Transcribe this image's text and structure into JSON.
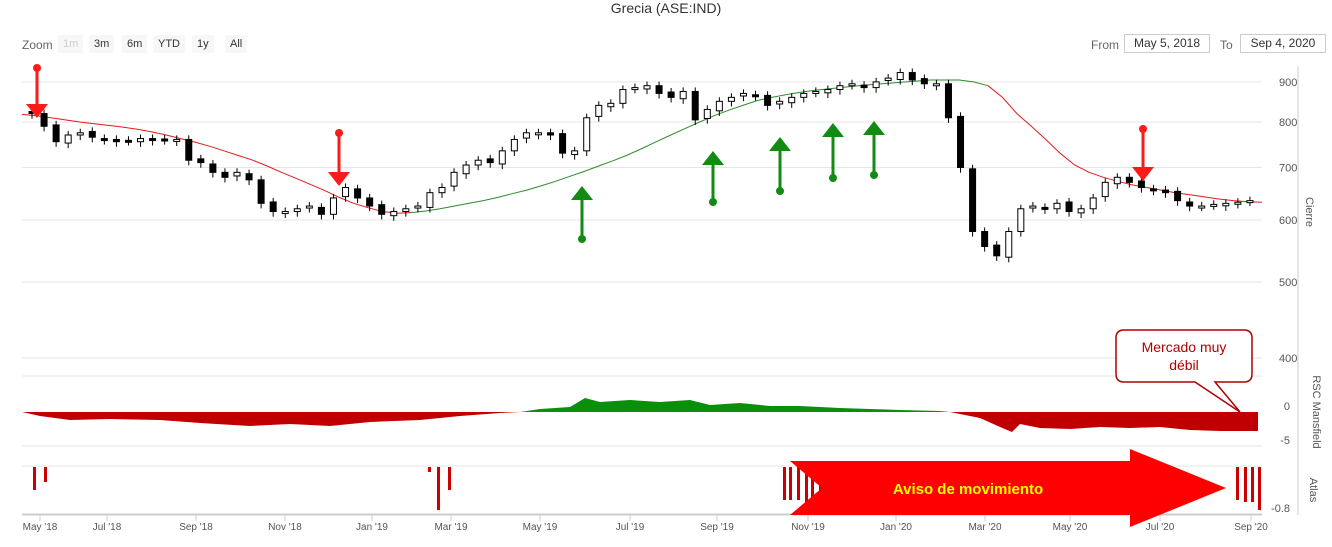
{
  "title": "Grecia (ASE:IND)",
  "toolbar": {
    "zoom_label": "Zoom",
    "buttons": [
      "1m",
      "3m",
      "6m",
      "YTD",
      "1y",
      "All"
    ],
    "from_label": "From",
    "from_value": "May 5, 2018",
    "to_label": "To",
    "to_value": "Sep 4, 2020"
  },
  "colors": {
    "bull": "#ffffff",
    "bear": "#000000",
    "ma_red": "#e41a1c",
    "ma_green": "#2e8b2e",
    "rsc_pos": "#0a8f0a",
    "rsc_neg": "#c00000",
    "signal_up": "#138a13",
    "signal_down": "#ff1a1a",
    "atlas_bar": "#cc0000"
  },
  "chart_data": {
    "type": "candlestick",
    "x_ticks": [
      "May '18",
      "Jul '18",
      "Sep '18",
      "Nov '18",
      "Jan '19",
      "Mar '19",
      "May '19",
      "Jul '19",
      "Sep '19",
      "Nov '19",
      "Jan '20",
      "Mar '20",
      "May '20",
      "Jul '20",
      "Sep '20"
    ],
    "y_axis_label": "Cierre",
    "y_ticks": [
      400,
      500,
      600,
      700,
      800,
      900
    ],
    "y_scale": "log",
    "ylim": [
      400,
      1000
    ],
    "closes": [
      820,
      790,
      755,
      770,
      775,
      765,
      760,
      755,
      758,
      762,
      758,
      760,
      760,
      715,
      710,
      690,
      680,
      690,
      675,
      630,
      615,
      615,
      620,
      625,
      610,
      640,
      660,
      640,
      625,
      610,
      615,
      620,
      625,
      650,
      660,
      690,
      705,
      715,
      710,
      735,
      760,
      775,
      775,
      770,
      730,
      735,
      810,
      840,
      845,
      880,
      885,
      890,
      870,
      860,
      875,
      805,
      830,
      850,
      860,
      870,
      865,
      840,
      850,
      860,
      870,
      875,
      880,
      890,
      895,
      885,
      900,
      910,
      925,
      905,
      895,
      895,
      810,
      700,
      580,
      555,
      540,
      580,
      620,
      625,
      620,
      630,
      615,
      620,
      640,
      670,
      680,
      670,
      660,
      655,
      650,
      635,
      625,
      625,
      628,
      630,
      632,
      635
    ],
    "ma_values": [
      818,
      815,
      810,
      805,
      800,
      796,
      792,
      788,
      783,
      777,
      770,
      762,
      754,
      745,
      735,
      725,
      715,
      703,
      690,
      678,
      666,
      654,
      641,
      630,
      622,
      615,
      612,
      613,
      616,
      620,
      625,
      630,
      635,
      641,
      648,
      655,
      663,
      672,
      682,
      692,
      703,
      714,
      726,
      740,
      755,
      770,
      785,
      800,
      815,
      828,
      840,
      852,
      860,
      867,
      873,
      878,
      882,
      886,
      890,
      893,
      896,
      899,
      902,
      905,
      905,
      905,
      900,
      890,
      860,
      820,
      790,
      760,
      730,
      705,
      690,
      680,
      672,
      665,
      660,
      655,
      650,
      646,
      642,
      638,
      635,
      633,
      632
    ],
    "rsc_series": "Mansfield RSC",
    "rsc_axis_label": "RSC Mansfield",
    "rsc_ticks": [
      0,
      -5
    ],
    "atlas_axis_label": "Atlas",
    "atlas_ticks": [
      -0.8
    ]
  },
  "annotations": {
    "callout": "Mercado muy débil",
    "callout_line1": "Mercado muy",
    "callout_line2": "débil",
    "warning_arrow_text": "Aviso de movimiento"
  }
}
